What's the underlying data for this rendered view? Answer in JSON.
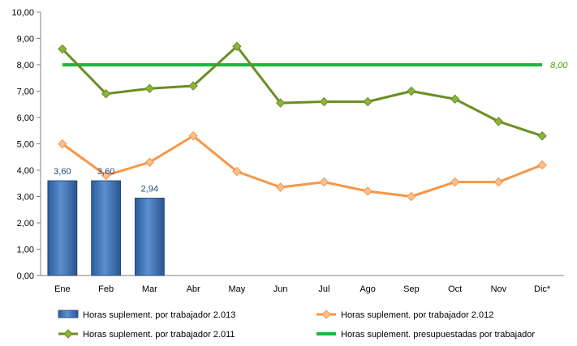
{
  "chart_data": {
    "type": "bar+line",
    "title": "",
    "xlabel": "",
    "ylabel": "",
    "ylim": [
      0,
      10
    ],
    "ytick_step": 1,
    "ytick_labels": [
      "0,00",
      "1,00",
      "2,00",
      "3,00",
      "4,00",
      "5,00",
      "6,00",
      "7,00",
      "8,00",
      "9,00",
      "10,00"
    ],
    "categories": [
      "Ene",
      "Feb",
      "Mar",
      "Abr",
      "May",
      "Jun",
      "Jul",
      "Ago",
      "Sep",
      "Oct",
      "Nov",
      "Dic*"
    ],
    "grid": false,
    "legend_position": "bottom",
    "bars": {
      "name": "Horas suplement. por trabajador 2.013",
      "color": "#4f81bd",
      "values": [
        3.6,
        3.6,
        2.94
      ],
      "labels": [
        "3,60",
        "3,60",
        "2,94"
      ]
    },
    "series": [
      {
        "name": "Horas suplement. por trabajador 2.012",
        "color": "#f79646",
        "marker_color": "#fac090",
        "values": [
          5.0,
          3.8,
          4.3,
          5.3,
          3.95,
          3.35,
          3.55,
          3.2,
          3.0,
          3.55,
          3.55,
          4.2
        ]
      },
      {
        "name": "Horas suplement. por trabajador 2.011",
        "color": "#6b8e23",
        "marker_color": "#8db33a",
        "values": [
          8.6,
          6.9,
          7.1,
          7.2,
          8.7,
          6.55,
          6.6,
          6.6,
          7.0,
          6.7,
          5.85,
          5.3
        ]
      },
      {
        "name": "Horas suplement. presupuestadas por trabajador",
        "color": "#1fb53f",
        "values": [
          8.0,
          8.0,
          8.0,
          8.0,
          8.0,
          8.0,
          8.0,
          8.0,
          8.0,
          8.0,
          8.0,
          8.0
        ],
        "end_label": "8,00"
      }
    ]
  }
}
